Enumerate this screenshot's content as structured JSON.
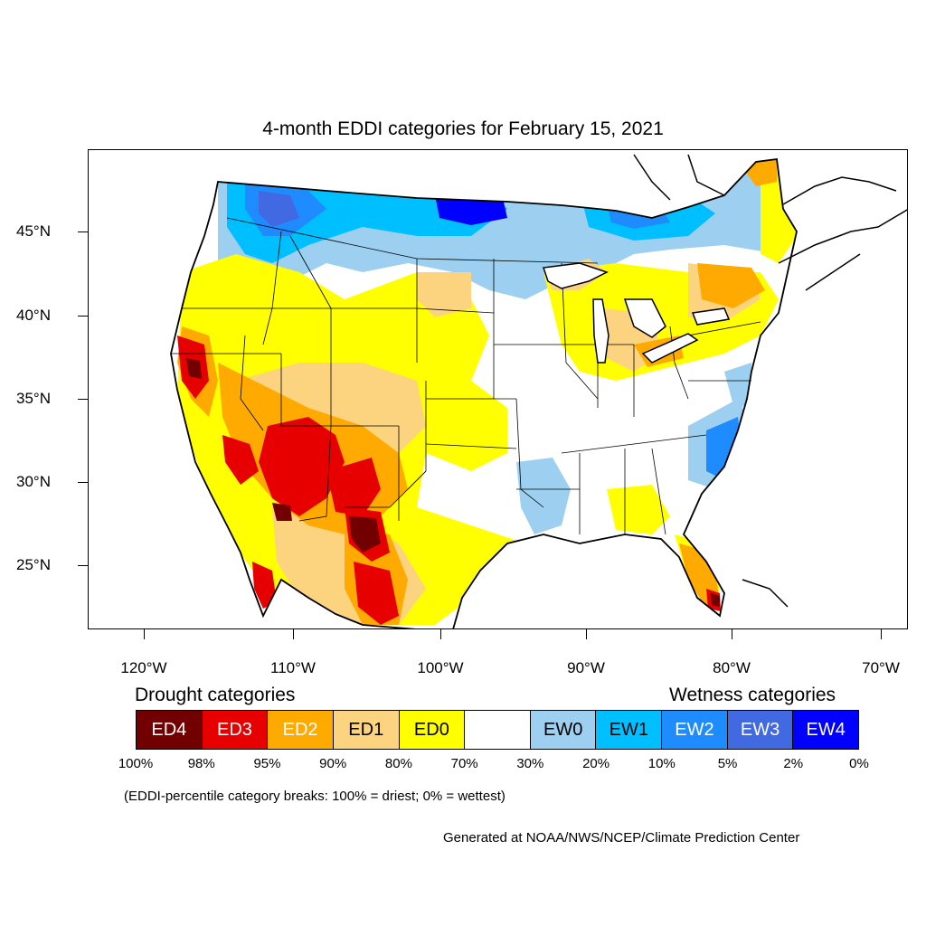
{
  "title": "4-month EDDI categories for February 15, 2021",
  "lat_labels": [
    "45°N",
    "40°N",
    "35°N",
    "30°N",
    "25°N"
  ],
  "lon_labels": [
    "120°W",
    "110°W",
    "100°W",
    "90°W",
    "80°W",
    "70°W"
  ],
  "legend": {
    "drought_heading": "Drought categories",
    "wetness_heading": "Wetness categories",
    "categories": [
      {
        "label": "ED4",
        "color": "#730000",
        "text_color": "#ffffff"
      },
      {
        "label": "ED3",
        "color": "#e60000",
        "text_color": "#ffffff"
      },
      {
        "label": "ED2",
        "color": "#ffaa00",
        "text_color": "#ffffff"
      },
      {
        "label": "ED1",
        "color": "#fcd37f",
        "text_color": "#000000"
      },
      {
        "label": "ED0",
        "color": "#ffff00",
        "text_color": "#000000"
      },
      {
        "label": "",
        "color": "#ffffff",
        "text_color": "#000000"
      },
      {
        "label": "EW0",
        "color": "#9ccff0",
        "text_color": "#000000"
      },
      {
        "label": "EW1",
        "color": "#00bfff",
        "text_color": "#000000"
      },
      {
        "label": "EW2",
        "color": "#1e8cff",
        "text_color": "#ffffff"
      },
      {
        "label": "EW3",
        "color": "#4169e1",
        "text_color": "#ffffff"
      },
      {
        "label": "EW4",
        "color": "#0000ff",
        "text_color": "#ffffff"
      }
    ],
    "breaks": [
      "100%",
      "98%",
      "95%",
      "90%",
      "80%",
      "70%",
      "30%",
      "20%",
      "10%",
      "5%",
      "2%",
      "0%"
    ]
  },
  "note": "(EDDI-percentile category breaks: 100% = driest; 0% = wettest)",
  "credit": "Generated at NOAA/NWS/NCEP/Climate Prediction Center"
}
